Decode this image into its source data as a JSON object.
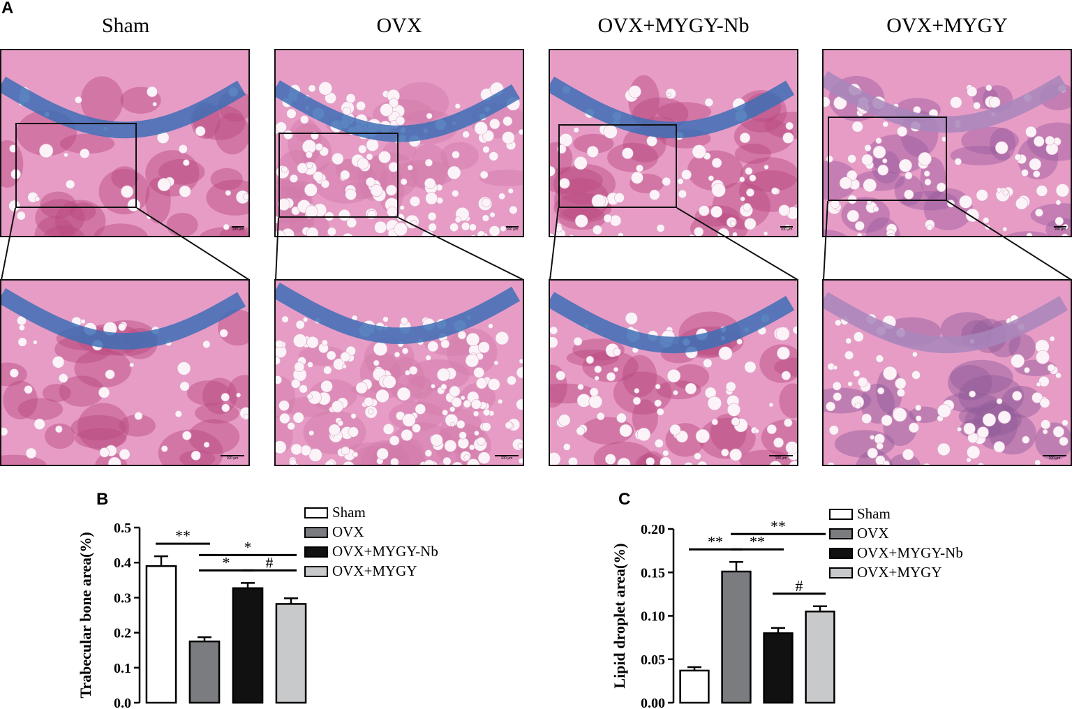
{
  "panels": {
    "a": "A",
    "b": "B",
    "c": "C"
  },
  "groups": [
    "Sham",
    "OVX",
    "OVX+MYGY-Nb",
    "OVX+MYGY"
  ],
  "scalebar_label": "100 μm",
  "colors": {
    "tissue_pink": "#e79cc6",
    "cartilage_blue": "#3d6fb5",
    "marrow_red": "#b84a7e",
    "fat_white": "#fbf3f8",
    "bar_sham": "#ffffff",
    "bar_ovx": "#7a7c80",
    "bar_ovx_mygy_nb": "#111111",
    "bar_ovx_mygy": "#c8c9cb"
  },
  "legend": [
    "Sham",
    "OVX",
    "OVX+MYGY-Nb",
    "OVX+MYGY"
  ],
  "chart_data": [
    {
      "type": "bar",
      "panel": "B",
      "ylabel": "Trabecular bone area(%)",
      "categories": [
        "Sham",
        "OVX",
        "OVX+MYGY-Nb",
        "OVX+MYGY"
      ],
      "values": [
        0.39,
        0.175,
        0.327,
        0.282
      ],
      "errors": [
        0.028,
        0.012,
        0.015,
        0.016
      ],
      "ylim": [
        0.0,
        0.5
      ],
      "yticks": [
        "0.0",
        "0.1",
        "0.2",
        "0.3",
        "0.4",
        "0.5"
      ],
      "significance": [
        {
          "from": 0,
          "to": 1,
          "label": "**"
        },
        {
          "from": 1,
          "to": 2,
          "label": "*"
        },
        {
          "from": 1,
          "to": 3,
          "label": "*"
        },
        {
          "from": 2,
          "to": 3,
          "label": "#"
        }
      ]
    },
    {
      "type": "bar",
      "panel": "C",
      "ylabel": "Lipid droplet area(%)",
      "categories": [
        "Sham",
        "OVX",
        "OVX+MYGY-Nb",
        "OVX+MYGY"
      ],
      "values": [
        0.037,
        0.151,
        0.08,
        0.105
      ],
      "errors": [
        0.004,
        0.011,
        0.006,
        0.006
      ],
      "ylim": [
        0.0,
        0.2
      ],
      "yticks": [
        "0.00",
        "0.05",
        "0.10",
        "0.15",
        "0.20"
      ],
      "significance": [
        {
          "from": 0,
          "to": 1,
          "label": "**"
        },
        {
          "from": 1,
          "to": 2,
          "label": "**"
        },
        {
          "from": 1,
          "to": 3,
          "label": "**"
        },
        {
          "from": 2,
          "to": 3,
          "label": "#"
        }
      ]
    }
  ]
}
